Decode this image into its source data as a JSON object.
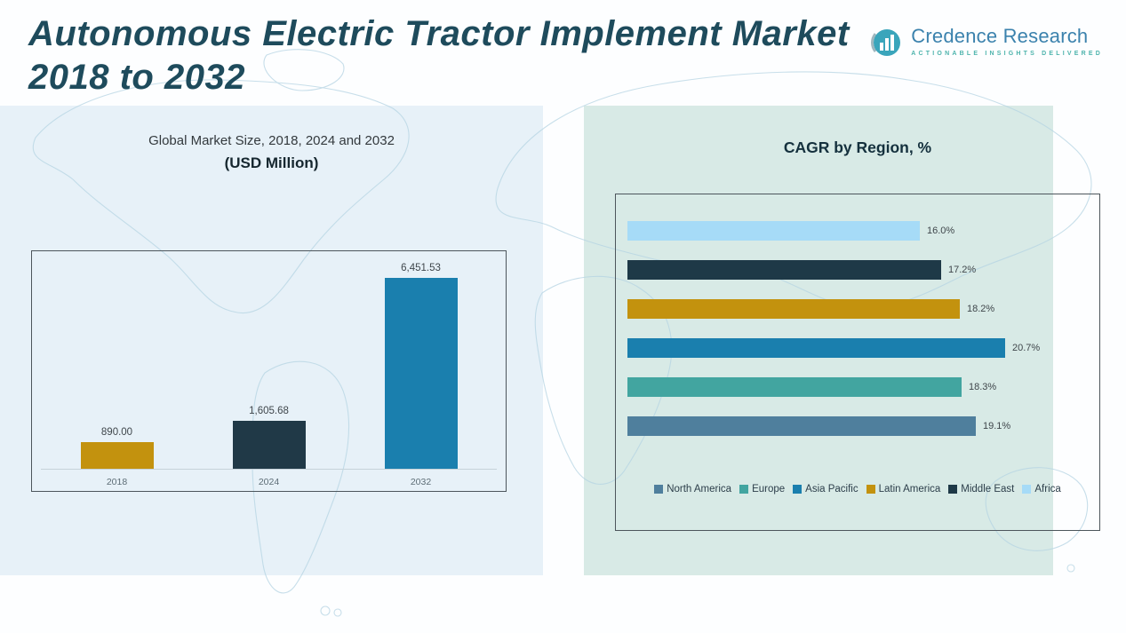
{
  "header": {
    "title_line1": "Autonomous Electric Tractor Implement Market",
    "title_line2": "2018 to 2032",
    "logo": {
      "name": "Credence Research",
      "tagline": "Actionable Insights Delivered",
      "name_color": "#3b82ad",
      "tagline_color": "#4db3ac",
      "icon": "bar-chart-circle-icon",
      "icon_color": "#3aa5bb"
    }
  },
  "colors": {
    "title": "#1e4b5c",
    "panel_left_bg": "#e7f1f8",
    "panel_right_bg": "#d8eae6",
    "map_outline": "#b5d4e3"
  },
  "chart_data": [
    {
      "type": "bar",
      "orientation": "vertical",
      "title": "Global Market Size, 2018, 2024 and 2032",
      "subtitle": "(USD Million)",
      "categories": [
        "2018",
        "2024",
        "2032"
      ],
      "values": [
        890.0,
        1605.68,
        6451.53
      ],
      "value_labels": [
        "890.00",
        "1,605.68",
        "6,451.53"
      ],
      "bar_colors": [
        "#c3920e",
        "#203947",
        "#1a7fae"
      ],
      "xlabel": "",
      "ylabel": "",
      "ylim": [
        0,
        6800
      ],
      "grid": false,
      "legend_position": "none"
    },
    {
      "type": "bar",
      "orientation": "horizontal",
      "title": "CAGR by Region, %",
      "categories_top_to_bottom": [
        "Africa",
        "Middle East",
        "Latin America",
        "Asia Pacific",
        "Europe",
        "North America"
      ],
      "values": [
        16.0,
        17.2,
        18.2,
        20.7,
        18.3,
        19.1
      ],
      "value_labels": [
        "16.0%",
        "17.2%",
        "18.2%",
        "20.7%",
        "18.3%",
        "19.1%"
      ],
      "bar_colors": [
        "#a6dbf7",
        "#1e3947",
        "#c3920e",
        "#1a7fae",
        "#42a5a0",
        "#4f7f9d"
      ],
      "xlabel": "",
      "ylabel": "",
      "xlim": [
        0,
        22
      ],
      "grid": false,
      "legend_position": "bottom",
      "legend": [
        {
          "label": "North America",
          "color": "#4f7f9d"
        },
        {
          "label": "Europe",
          "color": "#42a5a0"
        },
        {
          "label": "Asia Pacific",
          "color": "#1a7fae"
        },
        {
          "label": "Latin America",
          "color": "#c3920e"
        },
        {
          "label": "Middle East",
          "color": "#1e3947"
        },
        {
          "label": "Africa",
          "color": "#a6dbf7"
        }
      ]
    }
  ]
}
